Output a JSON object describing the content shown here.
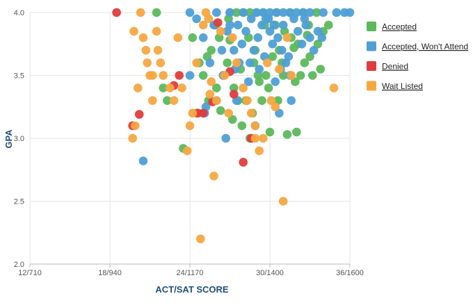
{
  "chart_data": {
    "type": "scatter",
    "xlabel": "ACT/SAT SCORE",
    "ylabel": "GPA",
    "x_ticks": [
      {
        "value": 12,
        "label": "12/710"
      },
      {
        "value": 18,
        "label": "18/940"
      },
      {
        "value": 24,
        "label": "24/1170"
      },
      {
        "value": 30,
        "label": "30/1400"
      },
      {
        "value": 36,
        "label": "36/1600"
      }
    ],
    "y_ticks": [
      {
        "value": 2.0,
        "label": "2.0"
      },
      {
        "value": 2.5,
        "label": "2.5"
      },
      {
        "value": 3.0,
        "label": "3.0"
      },
      {
        "value": 3.5,
        "label": "3.5"
      },
      {
        "value": 4.0,
        "label": "4.0"
      }
    ],
    "xlim": [
      12,
      36
    ],
    "ylim": [
      2.0,
      4.0
    ],
    "grid": true,
    "legend_position": "right",
    "series": [
      {
        "name": "Accepted",
        "color": "#5cb85c",
        "points": [
          [
            21.5,
            4.0
          ],
          [
            22.0,
            3.4
          ],
          [
            22.3,
            3.3
          ],
          [
            23.5,
            2.92
          ],
          [
            24.5,
            3.2
          ],
          [
            24.7,
            3.6
          ],
          [
            25.0,
            3.5
          ],
          [
            25.3,
            3.65
          ],
          [
            25.6,
            3.7
          ],
          [
            25.9,
            3.9
          ],
          [
            26.2,
            3.8
          ],
          [
            26.5,
            3.5
          ],
          [
            26.8,
            3.6
          ],
          [
            27.0,
            3.78
          ],
          [
            27.3,
            3.4
          ],
          [
            27.6,
            3.3
          ],
          [
            27.9,
            3.1
          ],
          [
            28.2,
            3.3
          ],
          [
            28.5,
            3.0
          ],
          [
            28.8,
            3.6
          ],
          [
            29.1,
            3.5
          ],
          [
            29.4,
            3.3
          ],
          [
            29.7,
            3.5
          ],
          [
            30.0,
            3.05
          ],
          [
            30.4,
            3.9
          ],
          [
            30.7,
            3.7
          ],
          [
            31.0,
            3.5
          ],
          [
            31.3,
            3.03
          ],
          [
            31.6,
            3.8
          ],
          [
            32.0,
            3.05
          ],
          [
            32.3,
            3.5
          ],
          [
            32.6,
            3.6
          ],
          [
            32.9,
            3.9
          ],
          [
            33.2,
            3.5
          ],
          [
            33.6,
            3.75
          ],
          [
            34.0,
            3.85
          ],
          [
            34.4,
            3.9
          ],
          [
            27.0,
            4.0
          ],
          [
            27.5,
            4.0
          ],
          [
            28.0,
            4.0
          ],
          [
            28.5,
            4.0
          ],
          [
            29.0,
            4.0
          ],
          [
            29.5,
            4.0
          ],
          [
            30.5,
            4.0
          ],
          [
            31.5,
            4.0
          ],
          [
            32.5,
            4.0
          ],
          [
            33.5,
            4.0
          ],
          [
            28.4,
            3.8
          ],
          [
            29.6,
            3.9
          ],
          [
            30.9,
            3.6
          ],
          [
            31.9,
            3.45
          ],
          [
            26.0,
            3.4
          ],
          [
            26.3,
            3.22
          ],
          [
            27.8,
            3.55
          ],
          [
            28.7,
            3.2
          ],
          [
            29.9,
            3.4
          ],
          [
            30.2,
            3.65
          ],
          [
            31.1,
            3.85
          ],
          [
            32.1,
            3.75
          ],
          [
            33.0,
            3.65
          ],
          [
            24.2,
            3.8
          ],
          [
            25.4,
            3.3
          ],
          [
            33.8,
            3.55
          ],
          [
            27.2,
            3.15
          ],
          [
            29.2,
            3.45
          ],
          [
            30.6,
            3.3
          ],
          [
            31.8,
            3.72
          ],
          [
            32.8,
            3.82
          ],
          [
            28.9,
            3.7
          ],
          [
            26.9,
            3.95
          ]
        ]
      },
      {
        "name": "Accepted, Won't Attend",
        "color": "#4f9fd6",
        "points": [
          [
            20.5,
            2.82
          ],
          [
            24.0,
            4.0
          ],
          [
            24.5,
            3.95
          ],
          [
            25.0,
            3.8
          ],
          [
            25.5,
            3.6
          ],
          [
            26.0,
            3.3
          ],
          [
            26.5,
            3.5
          ],
          [
            26.7,
            3.0
          ],
          [
            27.0,
            3.9
          ],
          [
            27.3,
            3.7
          ],
          [
            27.6,
            3.9
          ],
          [
            27.9,
            3.75
          ],
          [
            28.2,
            3.85
          ],
          [
            28.5,
            3.6
          ],
          [
            28.8,
            3.7
          ],
          [
            29.1,
            3.8
          ],
          [
            29.4,
            3.9
          ],
          [
            29.7,
            3.95
          ],
          [
            30.0,
            3.85
          ],
          [
            30.3,
            3.9
          ],
          [
            30.6,
            3.8
          ],
          [
            30.9,
            3.7
          ],
          [
            31.2,
            3.6
          ],
          [
            31.5,
            3.5
          ],
          [
            31.8,
            3.95
          ],
          [
            32.1,
            3.85
          ],
          [
            32.4,
            3.75
          ],
          [
            32.7,
            3.9
          ],
          [
            33.0,
            3.8
          ],
          [
            33.3,
            3.7
          ],
          [
            26.0,
            4.0
          ],
          [
            27.0,
            4.0
          ],
          [
            28.0,
            4.0
          ],
          [
            29.0,
            4.0
          ],
          [
            29.5,
            4.0
          ],
          [
            30.0,
            4.0
          ],
          [
            30.5,
            4.0
          ],
          [
            31.0,
            4.0
          ],
          [
            31.5,
            4.0
          ],
          [
            32.0,
            4.0
          ],
          [
            32.5,
            4.0
          ],
          [
            33.0,
            4.0
          ],
          [
            34.0,
            4.0
          ],
          [
            35.0,
            4.0
          ],
          [
            35.6,
            4.0
          ],
          [
            36.0,
            4.0
          ],
          [
            24.0,
            3.5
          ],
          [
            25.2,
            3.25
          ],
          [
            26.4,
            3.7
          ],
          [
            28.4,
            3.45
          ],
          [
            29.6,
            3.65
          ],
          [
            30.8,
            3.55
          ],
          [
            29.9,
            3.95
          ],
          [
            30.2,
            3.75
          ],
          [
            31.0,
            3.9
          ],
          [
            28.6,
            3.95
          ],
          [
            27.4,
            3.55
          ],
          [
            26.8,
            3.85
          ],
          [
            25.8,
            3.9
          ],
          [
            30.4,
            3.45
          ],
          [
            31.4,
            3.65
          ],
          [
            32.6,
            3.95
          ],
          [
            33.6,
            3.85
          ],
          [
            27.7,
            3.6
          ],
          [
            29.2,
            3.55
          ],
          [
            30.7,
            3.2
          ],
          [
            28.9,
            3.1
          ],
          [
            27.5,
            3.3
          ],
          [
            31.6,
            3.3
          ],
          [
            25.1,
            3.2
          ],
          [
            33.9,
            3.8
          ]
        ]
      },
      {
        "name": "Denied",
        "color": "#e03c3c",
        "points": [
          [
            18.5,
            4.0
          ],
          [
            19.7,
            3.1
          ],
          [
            20.2,
            3.19
          ],
          [
            22.8,
            3.42
          ],
          [
            23.2,
            3.5
          ],
          [
            24.6,
            3.2
          ],
          [
            25.7,
            3.29
          ],
          [
            26.1,
            3.92
          ],
          [
            27.3,
            3.35
          ],
          [
            28.0,
            2.81
          ],
          [
            25.0,
            3.2
          ],
          [
            27.0,
            3.53
          ],
          [
            28.6,
            3.0
          ]
        ]
      },
      {
        "name": "Wait Listed",
        "color": "#f5a742",
        "points": [
          [
            19.7,
            3.0
          ],
          [
            19.9,
            3.1
          ],
          [
            19.8,
            3.85
          ],
          [
            20.1,
            3.4
          ],
          [
            20.3,
            4.0
          ],
          [
            20.5,
            3.8
          ],
          [
            20.7,
            3.7
          ],
          [
            20.8,
            3.6
          ],
          [
            21.0,
            3.5
          ],
          [
            21.2,
            3.3
          ],
          [
            21.5,
            3.85
          ],
          [
            21.8,
            3.6
          ],
          [
            22.0,
            3.5
          ],
          [
            22.5,
            3.4
          ],
          [
            22.8,
            3.3
          ],
          [
            23.1,
            3.8
          ],
          [
            23.4,
            3.4
          ],
          [
            23.8,
            2.9
          ],
          [
            24.0,
            3.1
          ],
          [
            24.2,
            3.2
          ],
          [
            24.5,
            3.6
          ],
          [
            24.8,
            2.2
          ],
          [
            25.0,
            3.9
          ],
          [
            25.2,
            4.0
          ],
          [
            25.4,
            3.95
          ],
          [
            25.6,
            3.45
          ],
          [
            25.8,
            2.7
          ],
          [
            26.0,
            3.3
          ],
          [
            26.3,
            3.85
          ],
          [
            26.6,
            3.5
          ],
          [
            26.9,
            3.2
          ],
          [
            27.2,
            3.8
          ],
          [
            27.5,
            3.6
          ],
          [
            28.0,
            3.4
          ],
          [
            28.3,
            3.3
          ],
          [
            28.6,
            3.2
          ],
          [
            28.9,
            3.1
          ],
          [
            29.2,
            2.9
          ],
          [
            29.5,
            3.0
          ],
          [
            29.8,
            3.6
          ],
          [
            30.1,
            3.3
          ],
          [
            30.4,
            3.25
          ],
          [
            30.7,
            3.55
          ],
          [
            31.0,
            2.5
          ],
          [
            31.3,
            3.8
          ],
          [
            31.6,
            3.5
          ],
          [
            34.8,
            3.4
          ],
          [
            21.2,
            3.5
          ],
          [
            25.5,
            3.35
          ],
          [
            28.9,
            3.0
          ],
          [
            21.6,
            3.7
          ]
        ]
      }
    ]
  }
}
